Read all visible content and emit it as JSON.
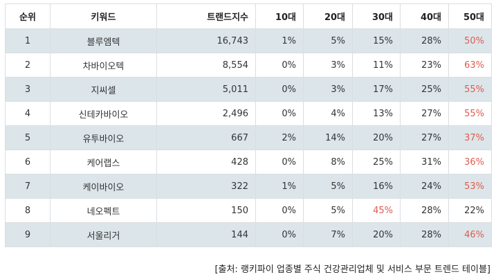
{
  "headers": [
    "순위",
    "키워드",
    "트랜드지수",
    "10대",
    "20대",
    "30대",
    "40대",
    "50대"
  ],
  "highlight_color": "#e05a4e",
  "shade_color": "#dce6ea",
  "rows": [
    {
      "rank": "1",
      "keyword": "블루엠텍",
      "index": "16,743",
      "a10": "1%",
      "a20": "5%",
      "a30": "15%",
      "a40": "28%",
      "a50": "50%",
      "hl": [
        "a50"
      ]
    },
    {
      "rank": "2",
      "keyword": "차바이오텍",
      "index": "8,554",
      "a10": "0%",
      "a20": "3%",
      "a30": "11%",
      "a40": "23%",
      "a50": "63%",
      "hl": [
        "a50"
      ]
    },
    {
      "rank": "3",
      "keyword": "지씨셀",
      "index": "5,011",
      "a10": "0%",
      "a20": "3%",
      "a30": "17%",
      "a40": "25%",
      "a50": "55%",
      "hl": [
        "a50"
      ]
    },
    {
      "rank": "4",
      "keyword": "신테카바이오",
      "index": "2,496",
      "a10": "0%",
      "a20": "4%",
      "a30": "13%",
      "a40": "27%",
      "a50": "55%",
      "hl": [
        "a50"
      ]
    },
    {
      "rank": "5",
      "keyword": "유투바이오",
      "index": "667",
      "a10": "2%",
      "a20": "14%",
      "a30": "20%",
      "a40": "27%",
      "a50": "37%",
      "hl": [
        "a50"
      ]
    },
    {
      "rank": "6",
      "keyword": "케어랩스",
      "index": "428",
      "a10": "0%",
      "a20": "8%",
      "a30": "25%",
      "a40": "31%",
      "a50": "36%",
      "hl": [
        "a50"
      ]
    },
    {
      "rank": "7",
      "keyword": "케이바이오",
      "index": "322",
      "a10": "1%",
      "a20": "5%",
      "a30": "16%",
      "a40": "24%",
      "a50": "53%",
      "hl": [
        "a50"
      ]
    },
    {
      "rank": "8",
      "keyword": "네오펙트",
      "index": "150",
      "a10": "0%",
      "a20": "5%",
      "a30": "45%",
      "a40": "28%",
      "a50": "22%",
      "hl": [
        "a30"
      ]
    },
    {
      "rank": "9",
      "keyword": "서울리거",
      "index": "144",
      "a10": "0%",
      "a20": "7%",
      "a30": "20%",
      "a40": "28%",
      "a50": "46%",
      "hl": [
        "a50"
      ]
    }
  ],
  "caption": "[출처: 랭키파이 업종별 주식 건강관리업체 및 서비스 부문 트렌드 테이블]"
}
